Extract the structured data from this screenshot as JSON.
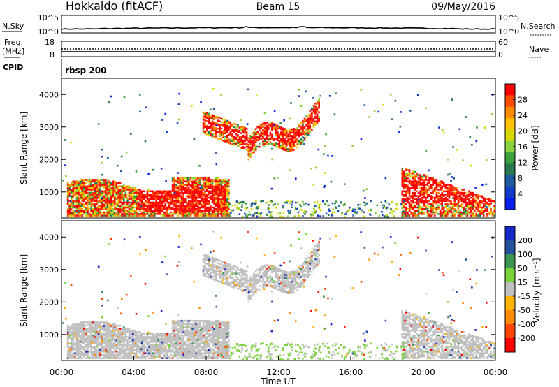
{
  "header": {
    "title": "Hokkaido (fitACF)",
    "beam": "Beam 15",
    "date": "09/May/2016"
  },
  "top_panels": {
    "nsky_label": "N.Sky",
    "nsky_ticks": [
      "10^5",
      "10^0"
    ],
    "nsearch_label": "N.Search",
    "nsearch_ticks": [
      "10^5",
      "10^0"
    ],
    "freq_label": "Freq.",
    "freq_unit": "[MHz]",
    "freq_ticks": [
      "18",
      "8"
    ],
    "nave_label": "Nave",
    "nave_ticks": [
      "60",
      "0"
    ],
    "cpid_label": "CPID",
    "cpid_value": "rbsp 200"
  },
  "chart_data": [
    {
      "type": "heatmap",
      "name": "power",
      "ylabel": "Slant Range [km]",
      "yticks": [
        1000,
        2000,
        3000,
        4000
      ],
      "ylim": [
        200,
        4500
      ],
      "xlim_hours": [
        0,
        24
      ],
      "colorbar": {
        "label": "Power [dB]",
        "ticks": [
          "28",
          "24",
          "20",
          "16",
          "12",
          "8",
          "4"
        ],
        "colors": [
          "#ff0000",
          "#ff4a00",
          "#ff8c00",
          "#ffc000",
          "#d8d800",
          "#8cd23c",
          "#3ca03c",
          "#287850",
          "#1e5aa0",
          "#143cc8",
          "#0a1ef0"
        ]
      },
      "regions": [
        {
          "t0": 0.3,
          "t1": 9.2,
          "r0": 300,
          "r1": 1500,
          "level": "mix"
        },
        {
          "t0": 4.2,
          "t1": 9.0,
          "r0": 400,
          "r1": 1250,
          "level": "high"
        },
        {
          "t0": 7.8,
          "t1": 14.2,
          "r0": 2200,
          "r1": 3600,
          "level": "arc"
        },
        {
          "t0": 18.8,
          "t1": 24,
          "r0": 300,
          "r1": 1800,
          "level": "mix"
        }
      ]
    },
    {
      "type": "heatmap",
      "name": "velocity",
      "ylabel": "Slant Range [km]",
      "yticks": [
        1000,
        2000,
        3000,
        4000
      ],
      "ylim": [
        200,
        4500
      ],
      "xlim_hours": [
        0,
        24
      ],
      "xticks": [
        "00:00",
        "04:00",
        "08:00",
        "12:00",
        "16:00",
        "20:00",
        "00:00"
      ],
      "xlabel": "Time UT",
      "colorbar": {
        "label": "Velocity [m s⁻¹]",
        "ticks": [
          "200",
          "100",
          "50",
          "15",
          "-15",
          "-50",
          "-100",
          "-200"
        ],
        "colors": [
          "#1428c8",
          "#2850a0",
          "#3c9650",
          "#7ad23c",
          "#c0c0c0",
          "#ffb400",
          "#ff8c00",
          "#ff4600",
          "#ff0000"
        ]
      }
    }
  ],
  "colors": {
    "ground_scatter": "#c0c0c0",
    "axis": "#000000"
  }
}
